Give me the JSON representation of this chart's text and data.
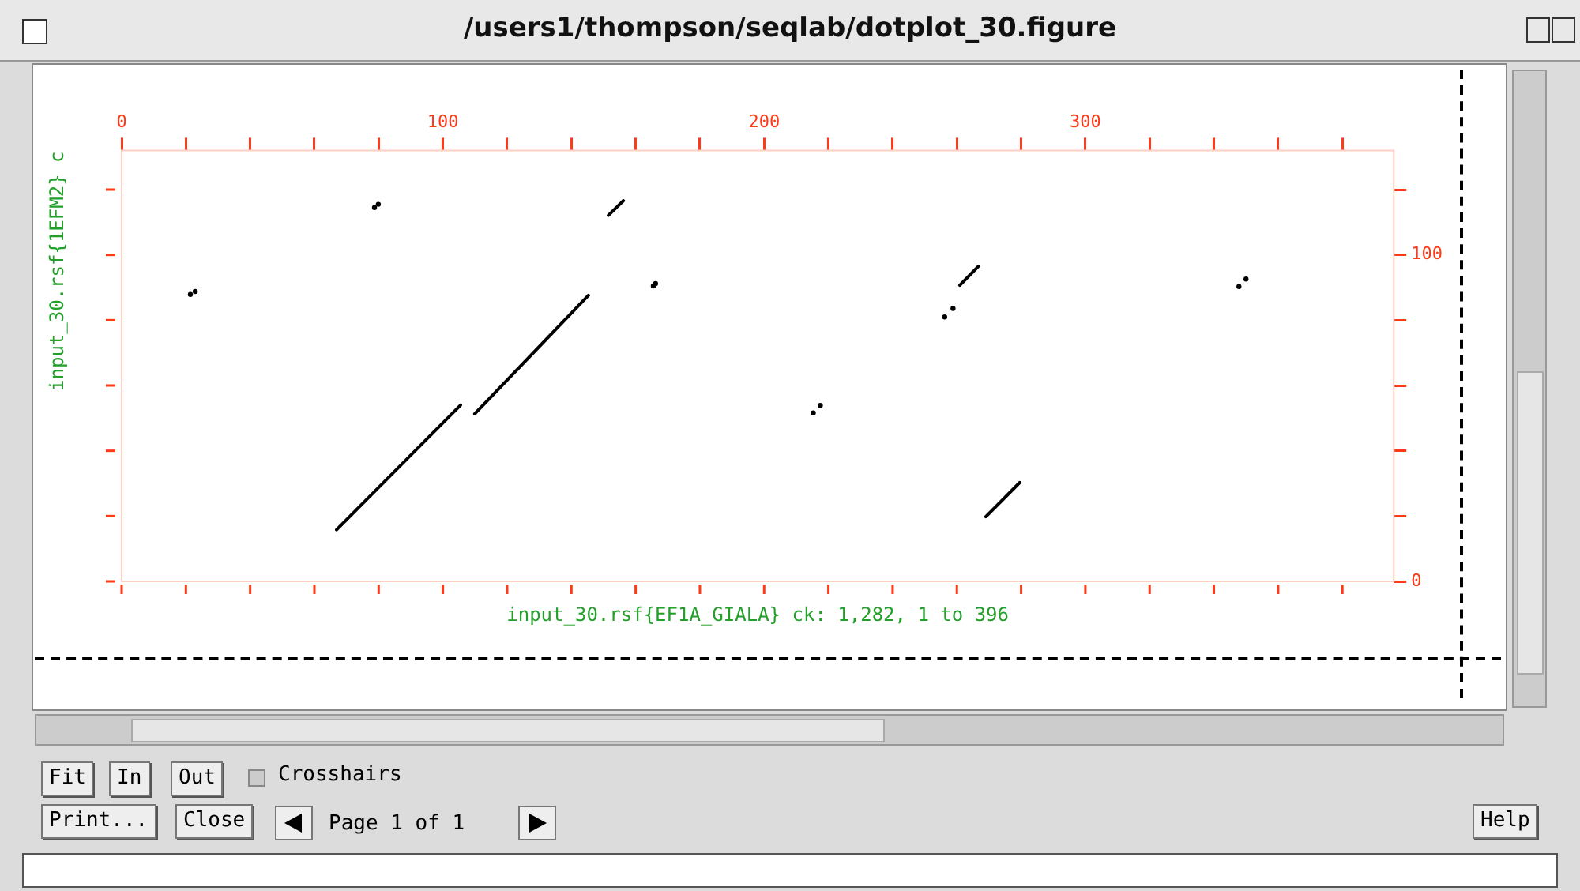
{
  "chart_data": {
    "type": "line",
    "title": "/users1/thompson/seqlab/dotplot_30.figure",
    "xlabel": "input_30.rsf{EF1A_GIALA} ck: 1,282, 1 to 396",
    "ylabel": "input_30.rsf{1EFM2} c",
    "xlim": [
      0,
      396
    ],
    "ylim": [
      0,
      132
    ],
    "xticks": [
      0,
      {
        "value": 20,
        "label": null
      },
      {
        "value": 40,
        "label": null
      },
      {
        "value": 60,
        "label": null
      },
      {
        "value": 80,
        "label": null
      },
      100,
      {
        "value": 120,
        "label": null
      },
      {
        "value": 140,
        "label": null
      },
      {
        "value": 160,
        "label": null
      },
      {
        "value": 180,
        "label": null
      },
      200,
      {
        "value": 220,
        "label": null
      },
      {
        "value": 240,
        "label": null
      },
      {
        "value": 260,
        "label": null
      },
      {
        "value": 280,
        "label": null
      },
      300,
      {
        "value": 320,
        "label": null
      },
      {
        "value": 340,
        "label": null
      },
      {
        "value": 360,
        "label": null
      },
      {
        "value": 380,
        "label": null
      }
    ],
    "yticks": [
      0,
      {
        "value": 20,
        "label": null
      },
      {
        "value": 40,
        "label": null
      },
      {
        "value": 60,
        "label": null
      },
      {
        "value": 80,
        "label": null
      },
      100,
      {
        "value": 120,
        "label": null
      }
    ],
    "series": [
      {
        "color": "#000000",
        "x": [
          66.9,
          105.5
        ],
        "values": [
          15.8,
          54.0
        ]
      },
      {
        "color": "#000000",
        "x": [
          109.9,
          145.3
        ],
        "values": [
          51.3,
          87.6
        ]
      },
      {
        "color": "#000000",
        "x": [
          151.5,
          156.2
        ],
        "values": [
          112.1,
          116.6
        ]
      },
      {
        "type": "scatter",
        "marker": "circle",
        "color": "#000000",
        "x": [
          78.7,
          79.9,
          21.4,
          22.9,
          165.5,
          166.2,
          256.2,
          258.8,
          347.8,
          350.0,
          215.3,
          217.5
        ],
        "values": [
          114.5,
          115.5,
          87.9,
          88.8,
          90.5,
          91.2,
          81.0,
          83.6,
          90.3,
          92.6,
          51.6,
          53.9
        ]
      },
      {
        "color": "#000000",
        "x": [
          260.9,
          266.7
        ],
        "values": [
          90.7,
          96.5
        ]
      },
      {
        "color": "#000000",
        "x": [
          269.0,
          279.6
        ],
        "values": [
          19.8,
          30.3
        ]
      }
    ],
    "annotations": [
      "Fit",
      "In",
      "Out",
      "Crosshairs",
      "Print...",
      "Close",
      "Page  1 of  1",
      "Help"
    ]
  }
}
